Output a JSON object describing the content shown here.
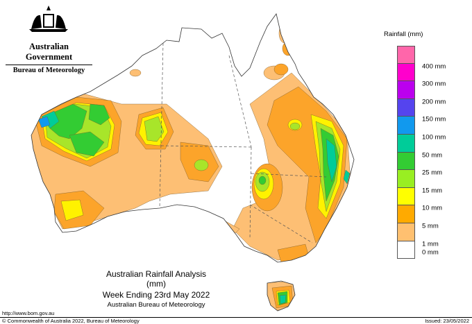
{
  "header": {
    "government": "Australian Government",
    "bureau": "Bureau of Meteorology"
  },
  "legend": {
    "title": "Rainfall (mm)",
    "classes": [
      {
        "label": "",
        "color": "#ff66aa"
      },
      {
        "label": "400 mm",
        "color": "#ff00cc"
      },
      {
        "label": "300 mm",
        "color": "#bb00ee"
      },
      {
        "label": "200 mm",
        "color": "#5544ee"
      },
      {
        "label": "150 mm",
        "color": "#1199ee"
      },
      {
        "label": "100 mm",
        "color": "#00cc99"
      },
      {
        "label": "50 mm",
        "color": "#33cc33"
      },
      {
        "label": "25 mm",
        "color": "#99ee22"
      },
      {
        "label": "15 mm",
        "color": "#ffff00"
      },
      {
        "label": "10 mm",
        "color": "#ffaa00"
      },
      {
        "label": "5 mm",
        "color": "#ffc070"
      },
      {
        "label": "1 mm",
        "color": "#ffffff"
      },
      {
        "label": "0 mm",
        "color": null
      }
    ]
  },
  "title": {
    "line1": "Australian Rainfall Analysis (mm)",
    "line2": "Week Ending 23rd May 2022",
    "line3": "Australian Bureau of Meteorology"
  },
  "footer": {
    "url": "http://www.bom.gov.au",
    "copyright": "© Commonwealth of Australia 2022, Bureau of Meteorology",
    "issued": "Issued: 23/05/2022"
  },
  "colors": {
    "r1": "#fdbf74",
    "r5": "#fca42a",
    "r10": "#fff200",
    "r15": "#a8e52a",
    "r25": "#33cc33",
    "r50": "#00cc99",
    "r100": "#1199ee",
    "outline": "#333333"
  }
}
